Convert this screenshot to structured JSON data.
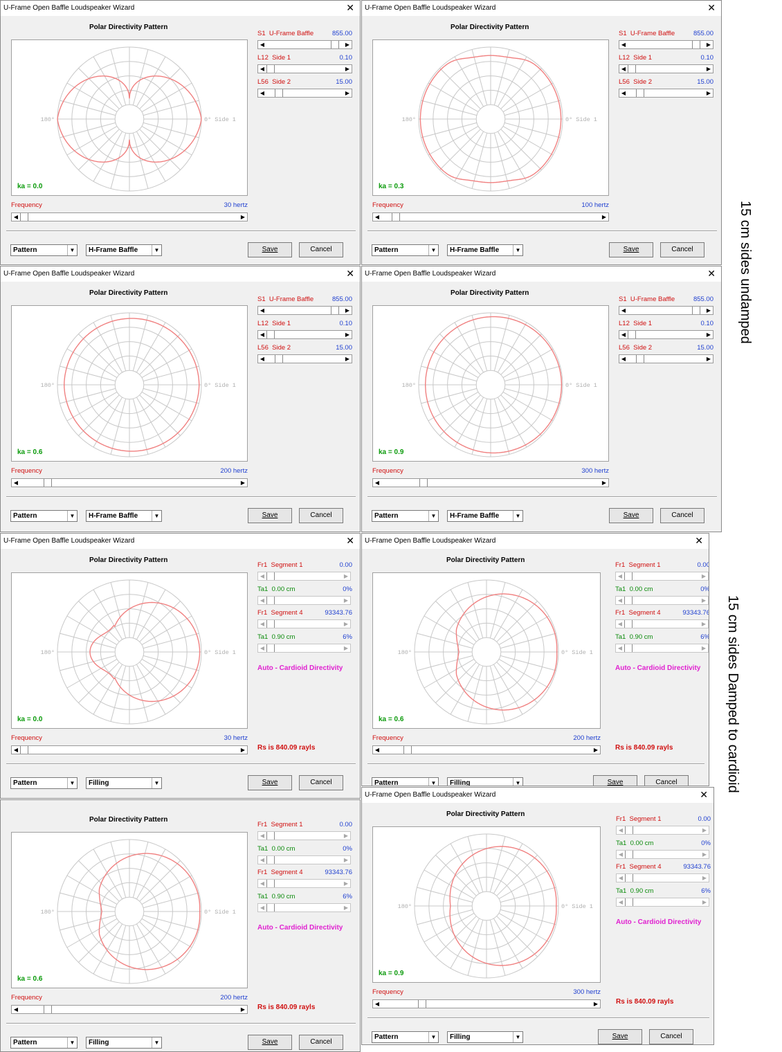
{
  "window_title": "U-Frame Open Baffle Loudspeaker Wizard",
  "close_glyph": "✕",
  "plot_title": "Polar Directivity Pattern",
  "angle_left": "180°",
  "angle_right": "0° Side 1",
  "frequency_label": "Frequency",
  "save_label": "Save",
  "cancel_label": "Cancel",
  "pattern_combo": "Pattern",
  "auto_cardioid": "Auto - Cardioid Directivity",
  "rs_text": "Rs is 840.09 rayls",
  "side_notes": [
    "15 cm sides undamped",
    "15 cm sides Damped to cardioid"
  ],
  "colors": {
    "curve": "#f08080",
    "grid": "#c8c8c8",
    "ka": "#0a9a0a",
    "label_red": "#d01010",
    "value_blue": "#2040d0",
    "magenta": "#e020d0"
  },
  "undamped_params": [
    {
      "code": "S1",
      "name": "U-Frame Baffle",
      "value": "855.00",
      "thumb": 0.92
    },
    {
      "code": "L12",
      "name": "Side 1",
      "value": "0.10",
      "thumb": 0.0
    },
    {
      "code": "L56",
      "name": "Side 2",
      "value": "15.00",
      "thumb": 0.12
    }
  ],
  "damped_params": [
    {
      "code": "Fr1",
      "name": "Segment 1",
      "value": "0.00",
      "color": "red"
    },
    {
      "code": "Ta1",
      "name": "0.00 cm",
      "value": "0%",
      "color": "green"
    },
    {
      "code": "Fr1",
      "name": "Segment 4",
      "value": "93343.76",
      "color": "red"
    },
    {
      "code": "Ta1",
      "name": "0.90 cm",
      "value": "6%",
      "color": "green"
    }
  ],
  "panels": [
    {
      "type": "undamped",
      "ka": "ka = 0.0",
      "freq": "30 hertz",
      "freq_pos": 0.0,
      "combo2": "H-Frame Baffle",
      "shape": "dipole",
      "title_visible": true
    },
    {
      "type": "undamped",
      "ka": "ka = 0.3",
      "freq": "100 hertz",
      "freq_pos": 0.05,
      "combo2": "H-Frame Baffle",
      "shape": "dipole_soft",
      "title_visible": true
    },
    {
      "type": "undamped",
      "ka": "ka = 0.6",
      "freq": "200 hertz",
      "freq_pos": 0.11,
      "combo2": "H-Frame Baffle",
      "shape": "wide",
      "title_visible": true
    },
    {
      "type": "undamped",
      "ka": "ka = 0.9",
      "freq": "300 hertz",
      "freq_pos": 0.18,
      "combo2": "H-Frame Baffle",
      "shape": "wider",
      "title_visible": true
    },
    {
      "type": "damped",
      "ka": "ka = 0.0",
      "freq": "30 hertz",
      "freq_pos": 0.0,
      "combo2": "Filling",
      "shape": "cardioid",
      "title_visible": true
    },
    {
      "type": "damped",
      "ka": "ka = 0.6",
      "freq": "200 hertz",
      "freq_pos": 0.11,
      "combo2": "Filling",
      "shape": "cardioid_wide",
      "title_visible": true
    },
    {
      "type": "damped",
      "ka": "ka = 0.6",
      "freq": "200 hertz",
      "freq_pos": 0.11,
      "combo2": "Filling",
      "shape": "cardioid_wide",
      "title_visible": false
    },
    {
      "type": "damped",
      "ka": "ka = 0.9",
      "freq": "300 hertz",
      "freq_pos": 0.18,
      "combo2": "Filling",
      "shape": "cardioid_wider",
      "title_visible": true
    }
  ]
}
